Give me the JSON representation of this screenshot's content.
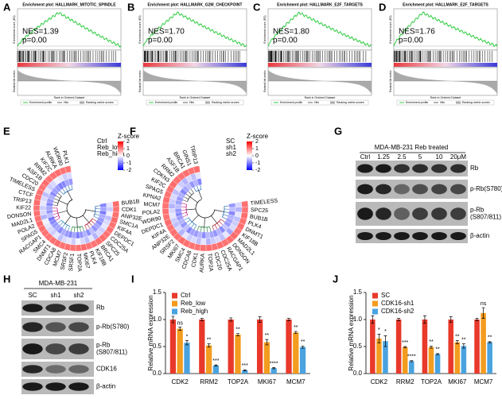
{
  "panel_labels": [
    "A",
    "B",
    "C",
    "D",
    "E",
    "F",
    "G",
    "H",
    "I",
    "J"
  ],
  "gsea_labels": {
    "es": "Enrichment score (ES)",
    "metric": "Ranked list metric",
    "rank": "Rank in Ordered Dataset",
    "profile": "Enrichment profile",
    "hits": "Hits",
    "ranking": "Ranking metric scores"
  },
  "gsea": [
    {
      "title": "Enrichment plot: HALLMARK_MITOTIC_SPINDLE",
      "nes": "NES=1.39",
      "p": "p=0.00"
    },
    {
      "title": "Enrichment plot: HALLMARK_G2M_CHECKPOINT",
      "nes": "NES=1.70",
      "p": "p=0.00"
    },
    {
      "title": "Enrichment plot: HALLMARK_E2F_TARGETS",
      "nes": "NES=1.80",
      "p": "p=0.00"
    },
    {
      "title": "Enrichment plot: HALLMARK_E2F_TARGETS",
      "nes": "NES=1.76",
      "p": "p=0.00"
    }
  ],
  "heatmaps": [
    {
      "legend_title": "Z-score",
      "legend_ticks": [
        2,
        1,
        0,
        -1,
        -2
      ],
      "genes": [
        "BUB1B",
        "CDK1",
        "ANP32E",
        "SMC1A",
        "KIF4A",
        "DEPDC1",
        "CDC25A",
        "SPC25",
        "BRCA1",
        "KIF18B",
        "PLK4",
        "MKI67",
        "TOP2A",
        "SRSF1",
        "SRSF2",
        "MCM7",
        "CDCA8",
        "DNMT1",
        "SMC4",
        "RACGAP1",
        "SPAG5",
        "POLA2",
        "MAD2L1",
        "DONSON",
        "KIF22",
        "TRIP13",
        "CTCF",
        "TIMELESS",
        "CDC20",
        "ASF1B",
        "RRM2",
        "KIF2C",
        "AURKA",
        "WDR90",
        "PLK1"
      ],
      "rows": [
        {
          "name": "Ctrl",
          "values": [
            1.15,
            1.1,
            1.12,
            1.15,
            1.1,
            1.13,
            1.1,
            1.15,
            1.12,
            1.1,
            1.1,
            1.15,
            1.12,
            1.1,
            1.14,
            1.1,
            1.15,
            1.12,
            1.1,
            1.1,
            1.13,
            1.15,
            1.1,
            1.12,
            1.1,
            1.15,
            1.1,
            1.12,
            1.1,
            1.15,
            1.1,
            1.12,
            1.15,
            1.1,
            1.1
          ]
        },
        {
          "name": "Reb_low",
          "values": [
            -0.2,
            -0.4,
            -0.1,
            -0.5,
            -0.3,
            -0.2,
            -0.4,
            -0.3,
            -0.6,
            -0.2,
            -0.5,
            -0.3,
            -0.1,
            -0.4,
            -0.2,
            -0.3,
            -0.5,
            -0.2,
            -0.4,
            -0.3,
            -0.2,
            -0.1,
            -0.6,
            -0.3,
            -0.4,
            -0.2,
            -0.3,
            -0.5,
            -0.2,
            -0.4,
            -0.3,
            -0.1,
            -0.2,
            -0.4,
            -0.3
          ]
        },
        {
          "name": "Reb_high",
          "values": [
            -0.95,
            -0.7,
            -1.02,
            -0.65,
            -0.8,
            -0.93,
            -0.7,
            -0.85,
            -0.52,
            -0.9,
            -0.6,
            -0.85,
            -1.02,
            -0.7,
            -0.94,
            -0.8,
            -0.65,
            -0.92,
            -0.7,
            -0.8,
            -0.93,
            -1.05,
            -0.5,
            -0.82,
            -0.7,
            -0.95,
            -0.8,
            -0.62,
            -0.9,
            -0.75,
            -0.8,
            -1.02,
            -0.95,
            -0.7,
            -0.8
          ]
        }
      ]
    },
    {
      "legend_title": "Z-score",
      "legend_ticks": [
        2,
        1,
        0,
        -1,
        -2
      ],
      "genes": [
        "TIMELESS",
        "SPC25",
        "BUB1B",
        "PLK4",
        "DNMT1",
        "KIF18B",
        "MAD2L1",
        "DONSON",
        "RACGAP1",
        "CDC25A",
        "CDC20",
        "TOP2A",
        "AURKA",
        "CDK1",
        "CDCA8",
        "SMC4",
        "MKI67",
        "SRSF2",
        "ANP32E",
        "KIF4A",
        "DEPDC1",
        "WDR90",
        "POLA2",
        "MCM7",
        "KPNA2",
        "SPAG5",
        "KIF2C",
        "CDKN3",
        "RRM2",
        "ASF1B",
        "BRCA1",
        "GINS1",
        "TRIP13"
      ],
      "rows": [
        {
          "name": "SC",
          "values": [
            1.12,
            1.1,
            1.15,
            1.1,
            1.13,
            1.1,
            1.15,
            1.12,
            1.1,
            1.14,
            1.1,
            1.15,
            1.12,
            1.1,
            1.1,
            1.13,
            1.15,
            1.1,
            1.12,
            1.1,
            1.15,
            1.1,
            1.12,
            1.1,
            1.15,
            1.1,
            1.12,
            1.15,
            1.1,
            1.1,
            1.13,
            1.1,
            1.15
          ]
        },
        {
          "name": "sh1",
          "values": [
            -0.3,
            -0.6,
            -0.2,
            -0.5,
            -0.4,
            -0.3,
            -0.7,
            -0.2,
            -0.5,
            -0.3,
            -0.4,
            -0.6,
            -0.2,
            -0.5,
            -0.3,
            -0.4,
            -0.2,
            -0.6,
            -0.3,
            -0.5,
            -0.4,
            -0.2,
            -0.3,
            -0.6,
            -0.4,
            -0.3,
            -0.5,
            -0.2,
            -0.4,
            -0.6,
            -0.3,
            -0.5,
            -0.2
          ]
        },
        {
          "name": "sh2",
          "values": [
            -0.82,
            -0.5,
            -0.95,
            -0.6,
            -0.73,
            -0.8,
            -0.45,
            -0.92,
            -0.6,
            -0.84,
            -0.7,
            -0.55,
            -0.92,
            -0.6,
            -0.8,
            -0.73,
            -0.95,
            -0.5,
            -0.82,
            -0.6,
            -0.75,
            -0.9,
            -0.82,
            -0.5,
            -0.75,
            -0.8,
            -0.62,
            -0.95,
            -0.7,
            -0.5,
            -0.83,
            -0.6,
            -0.95
          ]
        }
      ]
    }
  ],
  "blots": [
    {
      "title": "MDA-MB-231 Reb treated",
      "lanes": [
        "Ctrl",
        "1.25",
        "2.5",
        "5",
        "10",
        "20μM"
      ],
      "rows": [
        [
          "Rb"
        ],
        [
          "p-Rb(S780)"
        ],
        [
          "p-Rb",
          "(S807/811)"
        ],
        [
          "β-actin"
        ]
      ]
    },
    {
      "title": "MDA-MB-231",
      "lanes": [
        "SC",
        "sh1",
        "sh2"
      ],
      "rows": [
        [
          "Rb"
        ],
        [
          "p-Rb(S780)"
        ],
        [
          "p-Rb",
          "(S807/811)"
        ],
        [
          "CDK16"
        ],
        [
          "β-actin"
        ]
      ]
    }
  ],
  "chart_data": [
    {
      "type": "bar",
      "y_label": "Relative mRNA expression",
      "categories": [
        "CDK2",
        "RRM2",
        "TOP2A",
        "MKI67",
        "MCM7"
      ],
      "series": [
        {
          "name": "Ctrl",
          "color": "#e8392b",
          "values": [
            1,
            1,
            1,
            1,
            1
          ],
          "errors": [
            0.06,
            0.02,
            0.03,
            0.05,
            0.02
          ]
        },
        {
          "name": "Reb_low",
          "color": "#f39c1f",
          "values": [
            0.83,
            0.52,
            0.72,
            0.58,
            0.76
          ],
          "errors": [
            0.03,
            0.03,
            0.02,
            0.05,
            0.02
          ],
          "sig": [
            "ns",
            "**",
            "**",
            "**",
            "**"
          ]
        },
        {
          "name": "Reb_high",
          "color": "#4aa3df",
          "values": [
            0.57,
            0.15,
            0.06,
            0.1,
            0.49
          ],
          "errors": [
            0.04,
            0.01,
            0.01,
            0.01,
            0.02
          ],
          "sig": [
            "*",
            "***",
            "***",
            "****",
            "**"
          ]
        }
      ],
      "ylim": [
        0,
        1.5
      ],
      "yticks": [
        {
          "value": 0,
          "label": "0.0"
        },
        {
          "value": 0.5,
          "label": "0.5"
        },
        {
          "value": 1,
          "label": "1.0"
        },
        {
          "value": 1.5,
          "label": "1.5"
        }
      ]
    },
    {
      "type": "bar",
      "y_label": "Relative mRNA expression",
      "categories": [
        "CDK2",
        "RRM2",
        "TOP2A",
        "MKI67",
        "MCM7"
      ],
      "series": [
        {
          "name": "SC",
          "color": "#e8392b",
          "values": [
            1,
            1,
            1,
            1,
            1
          ],
          "errors": [
            0.07,
            0.02,
            0.07,
            0.05,
            0.02
          ]
        },
        {
          "name": "CDK16-sh1",
          "color": "#f39c1f",
          "values": [
            0.65,
            0.49,
            0.49,
            0.58,
            1.12
          ],
          "errors": [
            0.08,
            0.01,
            0.02,
            0.03,
            0.1
          ],
          "sig": [
            "*",
            "***",
            "**",
            "**",
            "ns"
          ]
        },
        {
          "name": "CDK16-sh2",
          "color": "#4aa3df",
          "values": [
            0.6,
            0.23,
            0.36,
            0.51,
            0.58
          ],
          "errors": [
            0.1,
            0.01,
            0.01,
            0.04,
            0.01
          ],
          "sig": [
            "*",
            "****",
            "**",
            "**",
            "**"
          ]
        }
      ],
      "ylim": [
        0,
        1.5
      ],
      "yticks": [
        {
          "value": 0,
          "label": "0.0"
        },
        {
          "value": 0.5,
          "label": "0.5"
        },
        {
          "value": 1,
          "label": "1.0"
        },
        {
          "value": 1.5,
          "label": "1.5"
        }
      ]
    }
  ]
}
